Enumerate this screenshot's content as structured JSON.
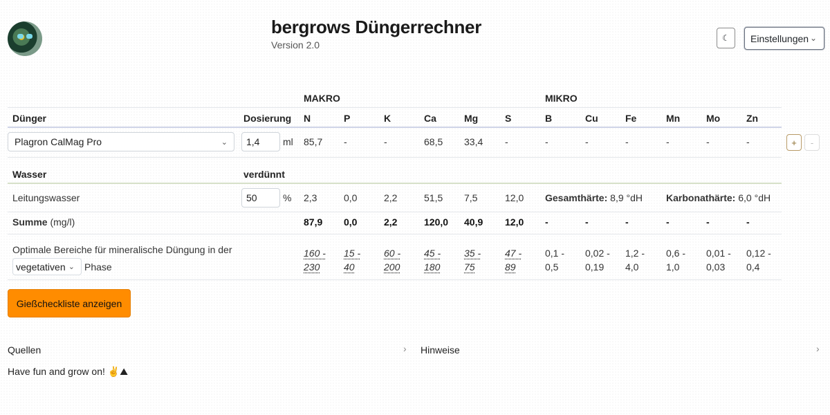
{
  "header": {
    "title": "bergrows Düngerrechner",
    "version": "Version 2.0",
    "theme_icon": "moon-icon",
    "settings_label": "Einstellungen"
  },
  "table": {
    "group_makro": "MAKRO",
    "group_mikro": "MIKRO",
    "col_duenger": "Dünger",
    "col_dosierung": "Dosierung",
    "nutrients": [
      "N",
      "P",
      "K",
      "Ca",
      "Mg",
      "S",
      "B",
      "Cu",
      "Fe",
      "Mn",
      "Mo",
      "Zn"
    ],
    "fertilizer": {
      "name": "Plagron CalMag Pro",
      "dose": "1,4",
      "unit": "ml",
      "values": [
        "85,7",
        "-",
        "-",
        "68,5",
        "33,4",
        "-",
        "-",
        "-",
        "-",
        "-",
        "-",
        "-"
      ],
      "add_label": "+",
      "remove_label": "-"
    },
    "water_header": "Wasser",
    "water_diluted": "verdünnt",
    "water": {
      "name": "Leitungswasser",
      "dilution": "50",
      "unit": "%",
      "values": [
        "2,3",
        "0,0",
        "2,2",
        "51,5",
        "7,5",
        "12,0"
      ],
      "gesamt_label": "Gesamthärte:",
      "gesamt_value": "8,9 °dH",
      "karbonat_label": "Karbonathärte:",
      "karbonat_value": "6,0 °dH"
    },
    "sum": {
      "label": "Summe",
      "unit": "(mg/l)",
      "values": [
        "87,9",
        "0,0",
        "2,2",
        "120,0",
        "40,9",
        "12,0",
        "-",
        "-",
        "-",
        "-",
        "-",
        "-"
      ]
    },
    "optimal": {
      "text": "Optimale Bereiche für mineralische Düngung in der",
      "phase_select": "vegetativen",
      "phase_label": "Phase",
      "ranges": [
        [
          "160 -",
          "230"
        ],
        [
          "15 -",
          "40"
        ],
        [
          "60 -",
          "200"
        ],
        [
          "45 -",
          "180"
        ],
        [
          "35 -",
          "75"
        ],
        [
          "47 -",
          "89"
        ],
        [
          "0,1 -",
          "0,5"
        ],
        [
          "0,02 -",
          "0,19"
        ],
        [
          "1,2 -",
          "4,0"
        ],
        [
          "0,6 -",
          "1,0"
        ],
        [
          "0,01 -",
          "0,03"
        ],
        [
          "0,12 -",
          "0,4"
        ]
      ]
    }
  },
  "checklist_button": "Gießcheckliste anzeigen",
  "accordions": {
    "quellen": "Quellen",
    "hinweise": "Hinweise"
  },
  "footer": "Have fun and grow on! ✌️⛰"
}
